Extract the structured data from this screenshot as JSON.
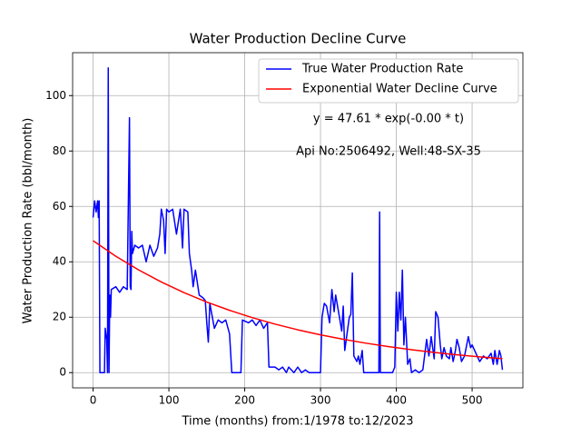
{
  "chart_data": {
    "type": "line",
    "title": "Water Production Decline Curve",
    "xlabel": "Time (months) from:1/1978 to:12/2023",
    "ylabel": "Water Production Rate (bbl/month)",
    "annotations": [
      "y = 47.61 * exp(-0.00 * t)",
      "Api No:2506492, Well:48-SX-35"
    ],
    "xlim": [
      -27,
      567
    ],
    "ylim": [
      -5.5,
      115.5
    ],
    "xticks": [
      0,
      100,
      200,
      300,
      400,
      500
    ],
    "yticks": [
      0,
      20,
      40,
      60,
      80,
      100
    ],
    "grid": true,
    "legend": "upper right",
    "series": [
      {
        "name": "True Water Production Rate",
        "color": "#0000ff",
        "x": [
          0,
          2,
          4,
          6,
          7,
          8,
          9,
          15,
          16,
          18,
          19,
          20,
          21,
          22,
          23,
          24,
          30,
          35,
          40,
          45,
          48,
          49,
          50,
          51,
          52,
          55,
          60,
          65,
          70,
          75,
          80,
          85,
          88,
          90,
          93,
          95,
          97,
          100,
          105,
          110,
          115,
          118,
          120,
          125,
          127,
          130,
          132,
          135,
          140,
          145,
          148,
          150,
          152,
          154,
          158,
          160,
          165,
          170,
          175,
          180,
          183,
          190,
          195,
          197,
          205,
          210,
          215,
          220,
          225,
          230,
          232,
          240,
          245,
          250,
          255,
          258,
          265,
          270,
          275,
          280,
          285,
          290,
          300,
          302,
          305,
          308,
          312,
          315,
          318,
          320,
          325,
          328,
          330,
          332,
          335,
          338,
          340,
          342,
          344,
          348,
          350,
          352,
          355,
          357,
          370,
          377,
          378,
          379,
          395,
          398,
          400,
          402,
          404,
          406,
          408,
          410,
          412,
          415,
          418,
          420,
          425,
          430,
          435,
          440,
          443,
          446,
          450,
          452,
          455,
          458,
          460,
          463,
          466,
          470,
          472,
          475,
          478,
          480,
          483,
          486,
          490,
          495,
          498,
          500,
          505,
          510,
          515,
          520,
          525,
          528,
          530,
          533,
          536,
          538,
          540
        ],
        "values": [
          56,
          62,
          58,
          62,
          56,
          62,
          0,
          0,
          16,
          12,
          0,
          110,
          0,
          28,
          20,
          30,
          31,
          29,
          31,
          30,
          92,
          31,
          30,
          51,
          43,
          46,
          45,
          46,
          40,
          46,
          42,
          45,
          50,
          59,
          55,
          43,
          59,
          58,
          59,
          50,
          59,
          45,
          59,
          58,
          43,
          37,
          31,
          37,
          28,
          27,
          26,
          18,
          11,
          25,
          19,
          16,
          19,
          18,
          19,
          14,
          0,
          0,
          0,
          19,
          18,
          19,
          17,
          19,
          16,
          18,
          2,
          2,
          1,
          2,
          0,
          2,
          0,
          2,
          0,
          1,
          0,
          0,
          0,
          20,
          25,
          24,
          18,
          30,
          22,
          28,
          20,
          15,
          24,
          8,
          14,
          20,
          21,
          36,
          6,
          4,
          6,
          3,
          8,
          0,
          0,
          0,
          58,
          0,
          0,
          2,
          29,
          15,
          29,
          19,
          37,
          10,
          20,
          3,
          5,
          0,
          1,
          0,
          1,
          12,
          6,
          13,
          5,
          22,
          20,
          10,
          5,
          9,
          6,
          5,
          9,
          4,
          8,
          12,
          9,
          4,
          6,
          13,
          9,
          10,
          7,
          4,
          6,
          5,
          7,
          3,
          8,
          3,
          8,
          6,
          1
        ]
      },
      {
        "name": "Exponential Water Decline Curve",
        "color": "#ff0000",
        "x": [
          0,
          30,
          60,
          90,
          120,
          150,
          180,
          210,
          240,
          270,
          300,
          330,
          360,
          390,
          420,
          450,
          480,
          510,
          540
        ],
        "values": [
          47.61,
          42.02,
          37.08,
          32.72,
          28.88,
          25.48,
          22.49,
          19.85,
          17.52,
          15.46,
          13.64,
          12.04,
          10.63,
          9.38,
          8.28,
          7.3,
          6.44,
          5.69,
          5.02
        ]
      }
    ]
  }
}
